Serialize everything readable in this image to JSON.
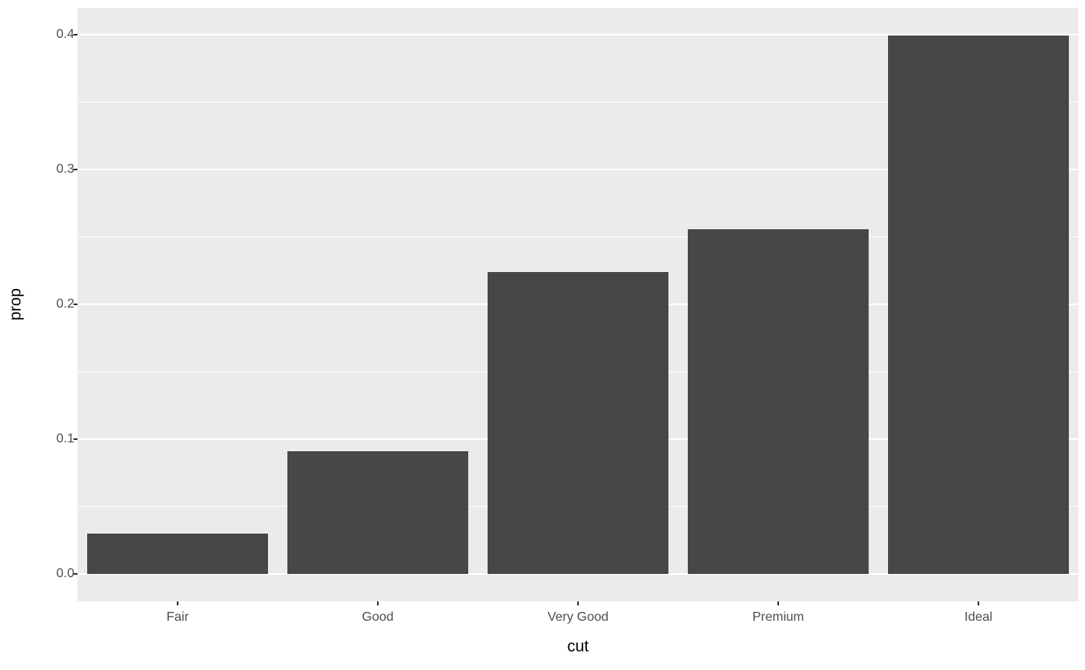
{
  "chart_data": {
    "type": "bar",
    "title": "",
    "xlabel": "cut",
    "ylabel": "prop",
    "categories": [
      "Fair",
      "Good",
      "Very Good",
      "Premium",
      "Ideal"
    ],
    "values": [
      0.0298,
      0.091,
      0.224,
      0.2557,
      0.3995
    ],
    "y_ticks": [
      0.0,
      0.1,
      0.2,
      0.3,
      0.4
    ],
    "y_tick_labels": [
      "0.0",
      "0.1",
      "0.2",
      "0.3",
      "0.4"
    ],
    "y_minor_ticks": [
      0.05,
      0.15,
      0.25,
      0.35
    ],
    "ylim": [
      -0.0206,
      0.4199
    ],
    "grid": "on",
    "legend": "none",
    "bar_width_fraction": 0.9,
    "colors": {
      "bar_fill": "#474747",
      "panel_background": "#EBEBEB",
      "gridline": "#FFFFFF",
      "tick_text": "#4D4D4D",
      "axis_title_text": "#000000",
      "tick_mark": "#333333",
      "plot_background": "#FFFFFF"
    }
  }
}
